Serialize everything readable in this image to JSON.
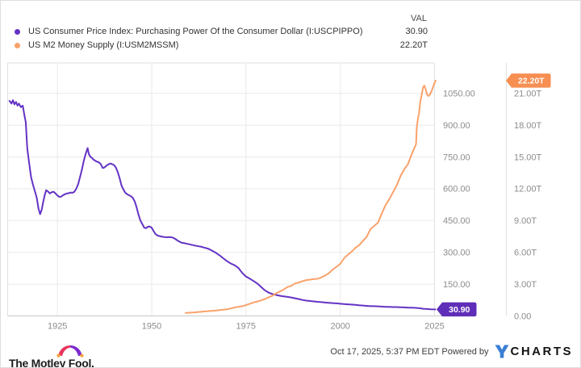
{
  "legend": {
    "val_header": "VAL",
    "items": [
      {
        "label": "US Consumer Price Index: Purchasing Power Of the Consumer Dollar (I:USCPIPPO)",
        "value": "30.90",
        "color": "#6333c4"
      },
      {
        "label": "US M2 Money Supply (I:USM2MSSM)",
        "value": "22.20T",
        "color": "#f9a26b"
      }
    ]
  },
  "chart_data": {
    "type": "line",
    "grid": true,
    "x_axis": {
      "domain": [
        1911.8,
        2025.0
      ],
      "ticks": [
        1925,
        1950,
        1975,
        2000,
        2025
      ],
      "tick_labels": [
        "1925",
        "1950",
        "1975",
        "2000",
        "2025"
      ]
    },
    "left_axis": {
      "domain": [
        0,
        1193.5
      ],
      "tick_values": [
        1050,
        900,
        750,
        600,
        450,
        300,
        150
      ],
      "tick_labels": [
        "1050.00",
        "900.00",
        "750.00",
        "600.00",
        "450.00",
        "300.00",
        "150.00"
      ],
      "badge": {
        "text": "30.90",
        "value": 30.9,
        "color": "#5f2eb8"
      }
    },
    "right_axis": {
      "domain": [
        0,
        23.87
      ],
      "tick_values": [
        21,
        18,
        15,
        12,
        9,
        6,
        3,
        0
      ],
      "tick_labels": [
        "21.00T",
        "18.00T",
        "15.00T",
        "12.00T",
        "9.00T",
        "6.00T",
        "3.00T",
        "0.00"
      ],
      "badge": {
        "text": "22.20T",
        "value": 22.2,
        "color": "#f78e52"
      }
    },
    "series": [
      {
        "name": "US Consumer Price Index: Purchasing Power Of the Consumer Dollar (I:USCPIPPO)",
        "axis": "left",
        "color": "#6333c4",
        "points": [
          [
            1912.3,
            1015
          ],
          [
            1912.8,
            1002
          ],
          [
            1913.2,
            1018
          ],
          [
            1913.6,
            998
          ],
          [
            1914.0,
            1010
          ],
          [
            1914.4,
            992
          ],
          [
            1914.8,
            1002
          ],
          [
            1915.3,
            985
          ],
          [
            1915.8,
            992
          ],
          [
            1916.2,
            950
          ],
          [
            1916.6,
            915
          ],
          [
            1917,
            790
          ],
          [
            1917.5,
            722
          ],
          [
            1918,
            655
          ],
          [
            1918.5,
            620
          ],
          [
            1919,
            590
          ],
          [
            1919.5,
            558
          ],
          [
            1920,
            505
          ],
          [
            1920.4,
            480
          ],
          [
            1920.8,
            500
          ],
          [
            1921.2,
            535
          ],
          [
            1921.6,
            568
          ],
          [
            1922,
            593
          ],
          [
            1922.5,
            587
          ],
          [
            1923,
            578
          ],
          [
            1923.5,
            584
          ],
          [
            1924,
            586
          ],
          [
            1924.5,
            578
          ],
          [
            1925,
            568
          ],
          [
            1925.5,
            562
          ],
          [
            1926,
            563
          ],
          [
            1926.5,
            570
          ],
          [
            1927,
            574
          ],
          [
            1927.5,
            578
          ],
          [
            1928,
            579
          ],
          [
            1928.5,
            582
          ],
          [
            1929,
            581
          ],
          [
            1929.5,
            586
          ],
          [
            1930,
            601
          ],
          [
            1930.5,
            622
          ],
          [
            1931,
            656
          ],
          [
            1931.5,
            692
          ],
          [
            1932,
            733
          ],
          [
            1932.5,
            765
          ],
          [
            1933,
            792
          ],
          [
            1933.3,
            765
          ],
          [
            1933.7,
            752
          ],
          [
            1934,
            748
          ],
          [
            1934.5,
            739
          ],
          [
            1935,
            732
          ],
          [
            1935.5,
            728
          ],
          [
            1936,
            724
          ],
          [
            1936.5,
            716
          ],
          [
            1937,
            698
          ],
          [
            1937.5,
            701
          ],
          [
            1938,
            709
          ],
          [
            1938.5,
            715
          ],
          [
            1939,
            719
          ],
          [
            1939.5,
            716
          ],
          [
            1940,
            712
          ],
          [
            1940.5,
            700
          ],
          [
            1941,
            678
          ],
          [
            1941.5,
            649
          ],
          [
            1942,
            615
          ],
          [
            1942.5,
            596
          ],
          [
            1943,
            581
          ],
          [
            1943.5,
            574
          ],
          [
            1944,
            569
          ],
          [
            1944.5,
            565
          ],
          [
            1945,
            557
          ],
          [
            1945.5,
            540
          ],
          [
            1946,
            512
          ],
          [
            1946.5,
            477
          ],
          [
            1947,
            450
          ],
          [
            1947.5,
            434
          ],
          [
            1948,
            417
          ],
          [
            1948.5,
            414
          ],
          [
            1949,
            421
          ],
          [
            1949.5,
            422
          ],
          [
            1950,
            416
          ],
          [
            1950.5,
            400
          ],
          [
            1951,
            386
          ],
          [
            1951.5,
            380
          ],
          [
            1952,
            377
          ],
          [
            1952.5,
            375
          ],
          [
            1953,
            373
          ],
          [
            1954,
            371
          ],
          [
            1955,
            372
          ],
          [
            1955.5,
            370
          ],
          [
            1956,
            366
          ],
          [
            1956.5,
            360
          ],
          [
            1957,
            354
          ],
          [
            1957.5,
            349
          ],
          [
            1958,
            345
          ],
          [
            1958.5,
            344
          ],
          [
            1959,
            342
          ],
          [
            1959.5,
            340
          ],
          [
            1960,
            338
          ],
          [
            1961,
            334
          ],
          [
            1962,
            330
          ],
          [
            1963,
            327
          ],
          [
            1964,
            322
          ],
          [
            1965,
            317
          ],
          [
            1966,
            308
          ],
          [
            1967,
            298
          ],
          [
            1968,
            286
          ],
          [
            1969,
            272
          ],
          [
            1970,
            258
          ],
          [
            1971,
            247
          ],
          [
            1972,
            239
          ],
          [
            1973,
            226
          ],
          [
            1974,
            203
          ],
          [
            1975,
            186
          ],
          [
            1976,
            176
          ],
          [
            1977,
            165
          ],
          [
            1978,
            153
          ],
          [
            1979,
            137
          ],
          [
            1980,
            121
          ],
          [
            1981,
            110
          ],
          [
            1982,
            103
          ],
          [
            1983,
            99
          ],
          [
            1984,
            95
          ],
          [
            1985,
            92
          ],
          [
            1986,
            90
          ],
          [
            1987,
            87
          ],
          [
            1988,
            83.5
          ],
          [
            1989,
            79.5
          ],
          [
            1990,
            75.5
          ],
          [
            1991,
            72.5
          ],
          [
            1992,
            70.5
          ],
          [
            1993,
            68.5
          ],
          [
            1994,
            66.8
          ],
          [
            1995,
            65
          ],
          [
            1996,
            63.1
          ],
          [
            1997,
            61.7
          ],
          [
            1998,
            60.7
          ],
          [
            1999,
            59.4
          ],
          [
            2000,
            57.5
          ],
          [
            2001,
            55.9
          ],
          [
            2002,
            55
          ],
          [
            2003,
            53.8
          ],
          [
            2004,
            52.4
          ],
          [
            2005,
            50.7
          ],
          [
            2006,
            49.1
          ],
          [
            2007,
            47.7
          ],
          [
            2008,
            45.9
          ],
          [
            2009,
            46.1
          ],
          [
            2010,
            45.4
          ],
          [
            2011,
            44
          ],
          [
            2012,
            43.1
          ],
          [
            2013,
            42.5
          ],
          [
            2014,
            41.8
          ],
          [
            2015,
            41.7
          ],
          [
            2016,
            41.2
          ],
          [
            2017,
            40.3
          ],
          [
            2018,
            39.4
          ],
          [
            2019,
            38.7
          ],
          [
            2020,
            38.2
          ],
          [
            2021,
            36.6
          ],
          [
            2022,
            33.9
          ],
          [
            2023,
            32.6
          ],
          [
            2024,
            31.7
          ],
          [
            2025.2,
            30.9
          ]
        ]
      },
      {
        "name": "US M2 Money Supply (I:USM2MSSM)",
        "axis": "right",
        "color": "#f9a26b",
        "points": [
          [
            1959,
            0.29
          ],
          [
            1961,
            0.33
          ],
          [
            1963,
            0.39
          ],
          [
            1965,
            0.46
          ],
          [
            1967,
            0.52
          ],
          [
            1969,
            0.59
          ],
          [
            1970,
            0.63
          ],
          [
            1971,
            0.71
          ],
          [
            1972,
            0.8
          ],
          [
            1973,
            0.86
          ],
          [
            1974,
            0.91
          ],
          [
            1975,
            1.02
          ],
          [
            1976,
            1.15
          ],
          [
            1977,
            1.27
          ],
          [
            1978,
            1.37
          ],
          [
            1979,
            1.47
          ],
          [
            1980,
            1.6
          ],
          [
            1981,
            1.76
          ],
          [
            1982,
            1.91
          ],
          [
            1983,
            2.13
          ],
          [
            1984,
            2.31
          ],
          [
            1985,
            2.5
          ],
          [
            1986,
            2.73
          ],
          [
            1987,
            2.83
          ],
          [
            1988,
            3.07
          ],
          [
            1989,
            3.16
          ],
          [
            1990,
            3.28
          ],
          [
            1991,
            3.38
          ],
          [
            1992,
            3.43
          ],
          [
            1993,
            3.48
          ],
          [
            1994,
            3.5
          ],
          [
            1995,
            3.64
          ],
          [
            1996,
            3.82
          ],
          [
            1997,
            4.04
          ],
          [
            1998,
            4.38
          ],
          [
            1999,
            4.64
          ],
          [
            2000,
            4.92
          ],
          [
            2001,
            5.43
          ],
          [
            2002,
            5.77
          ],
          [
            2003,
            6.07
          ],
          [
            2004,
            6.42
          ],
          [
            2005,
            6.68
          ],
          [
            2006,
            7.07
          ],
          [
            2007,
            7.47
          ],
          [
            2008,
            8.19
          ],
          [
            2009,
            8.49
          ],
          [
            2010,
            8.8
          ],
          [
            2011,
            9.66
          ],
          [
            2012,
            10.45
          ],
          [
            2013,
            11.02
          ],
          [
            2014,
            11.67
          ],
          [
            2015,
            12.34
          ],
          [
            2016,
            13.21
          ],
          [
            2017,
            13.85
          ],
          [
            2018,
            14.36
          ],
          [
            2019,
            15.32
          ],
          [
            2020.1,
            16.2
          ],
          [
            2020.3,
            17.8
          ],
          [
            2020.6,
            18.6
          ],
          [
            2020.9,
            19.1
          ],
          [
            2021.2,
            20.1
          ],
          [
            2021.6,
            20.9
          ],
          [
            2022.0,
            21.6
          ],
          [
            2022.3,
            21.73
          ],
          [
            2022.7,
            21.3
          ],
          [
            2023.0,
            20.9
          ],
          [
            2023.4,
            20.75
          ],
          [
            2023.8,
            20.9
          ],
          [
            2024.2,
            21.2
          ],
          [
            2024.6,
            21.6
          ],
          [
            2025.0,
            22.0
          ],
          [
            2025.3,
            22.2
          ]
        ]
      }
    ]
  },
  "footer": {
    "motley_fool_text": "The Motley Fool.",
    "timestamp": "Oct 17, 2025, 5:37 PM EDT Powered by",
    "ycharts_wordmark": "CHARTS"
  },
  "colors": {
    "gridline": "#eaeaea",
    "plot_border": "#e0e0e0",
    "axis_line": "#c8c8c8",
    "tick_label": "#8c8c8c",
    "ycharts_blue": "#3a7fd5"
  }
}
